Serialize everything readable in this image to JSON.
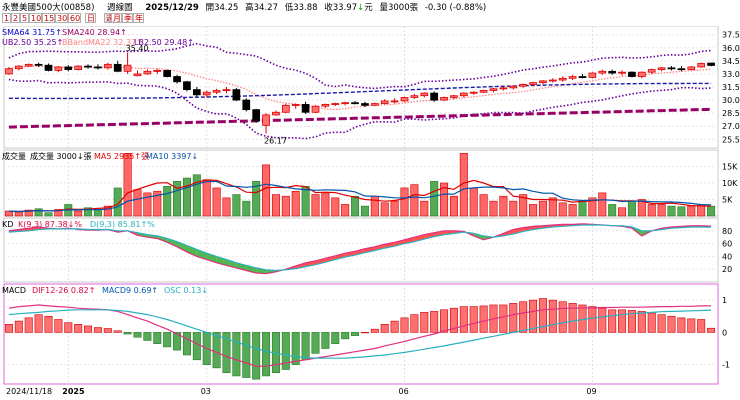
{
  "header": {
    "stock_name": "永豐美國500大(00858)",
    "period_label": "週線圖",
    "date": "2025/12/29",
    "open_label": "開",
    "open": "34.25",
    "high_label": "高",
    "high": "34.27",
    "low_label": "低",
    "low": "33.88",
    "close_label": "收",
    "close": "33.97",
    "unit": "元",
    "volume_label": "量",
    "volume": "3000",
    "volume_unit": "張",
    "change": "-0.30",
    "change_pct": "(-0.88%)",
    "colors": {
      "up": "#e00000",
      "down": "#009900"
    }
  },
  "toolbar": {
    "buttons": [
      "1",
      "2",
      "5",
      "10",
      "15",
      "30",
      "60",
      "日",
      "週",
      "月",
      "季",
      "年"
    ],
    "selected": "週"
  },
  "chart_data": [
    {
      "type": "candlestick",
      "id": "price",
      "ylim": [
        24.5,
        38.5
      ],
      "yticks": [
        "37.50",
        "36.00",
        "34.50",
        "33.00",
        "31.50",
        "30.00",
        "28.50",
        "27.00",
        "25.50"
      ],
      "ytick_values": [
        37.5,
        36,
        34.5,
        33,
        31.5,
        30,
        28.5,
        27,
        25.5
      ],
      "legend": [
        {
          "name": "SMA64",
          "value": "31.75",
          "arrow": "↑",
          "color": "#0000cc"
        },
        {
          "name": "SMA240",
          "value": "28.94",
          "arrow": "↑",
          "color": "#990066"
        },
        {
          "name": "UB2.50",
          "value": "35.25",
          "arrow": "↑",
          "color": "#660099"
        },
        {
          "name": "BBandMA22",
          "value": "32.37",
          "arrow": "↑",
          "color": "#ff8080"
        },
        {
          "name": "LB2.50",
          "value": "29.48",
          "arrow": "↑",
          "color": "#660099"
        }
      ],
      "annotations": [
        {
          "text": "35.40",
          "index": 12
        },
        {
          "text": "26.17",
          "index": 26
        }
      ],
      "candles": [
        [
          33.0,
          33.8,
          32.9,
          33.6
        ],
        [
          33.6,
          34.0,
          33.4,
          33.9
        ],
        [
          33.9,
          34.2,
          33.8,
          34.1
        ],
        [
          34.1,
          34.3,
          33.8,
          34.0
        ],
        [
          34.0,
          34.2,
          33.3,
          33.4
        ],
        [
          33.4,
          33.9,
          33.2,
          33.8
        ],
        [
          33.8,
          34.0,
          33.3,
          33.5
        ],
        [
          33.5,
          34.0,
          33.4,
          33.9
        ],
        [
          33.9,
          34.1,
          33.6,
          33.8
        ],
        [
          33.8,
          34.1,
          33.5,
          33.7
        ],
        [
          33.7,
          34.3,
          33.5,
          34.1
        ],
        [
          34.1,
          34.5,
          33.2,
          33.3
        ],
        [
          33.3,
          35.4,
          33.0,
          34.0
        ],
        [
          32.8,
          33.4,
          32.7,
          33.0
        ],
        [
          33.0,
          33.5,
          32.9,
          33.3
        ],
        [
          33.3,
          33.6,
          33.0,
          33.4
        ],
        [
          33.4,
          33.5,
          32.6,
          32.7
        ],
        [
          32.7,
          32.9,
          31.9,
          32.1
        ],
        [
          32.1,
          32.2,
          31.0,
          31.2
        ],
        [
          31.2,
          31.5,
          30.4,
          30.6
        ],
        [
          30.6,
          31.1,
          30.3,
          30.9
        ],
        [
          30.9,
          31.3,
          30.7,
          31.1
        ],
        [
          31.1,
          31.5,
          30.8,
          31.2
        ],
        [
          31.2,
          31.4,
          29.9,
          30.0
        ],
        [
          30.0,
          30.2,
          28.7,
          28.9
        ],
        [
          28.9,
          29.0,
          27.4,
          27.6
        ],
        [
          27.1,
          28.5,
          26.17,
          28.3
        ],
        [
          28.3,
          28.8,
          28.2,
          28.6
        ],
        [
          28.6,
          29.6,
          28.5,
          29.4
        ],
        [
          29.4,
          29.6,
          29.0,
          29.5
        ],
        [
          29.5,
          29.8,
          28.4,
          28.6
        ],
        [
          28.6,
          29.4,
          28.5,
          29.3
        ],
        [
          29.3,
          29.6,
          29.1,
          29.5
        ],
        [
          29.5,
          29.7,
          29.3,
          29.6
        ],
        [
          29.6,
          29.8,
          29.4,
          29.7
        ],
        [
          29.7,
          29.9,
          29.5,
          29.6
        ],
        [
          29.6,
          29.8,
          29.2,
          29.4
        ],
        [
          29.4,
          29.7,
          29.3,
          29.6
        ],
        [
          29.6,
          30.1,
          29.5,
          29.9
        ],
        [
          29.9,
          30.2,
          29.6,
          29.9
        ],
        [
          29.9,
          30.4,
          29.8,
          30.3
        ],
        [
          30.3,
          30.7,
          30.1,
          30.5
        ],
        [
          30.5,
          30.9,
          30.3,
          30.8
        ],
        [
          30.8,
          31.0,
          29.8,
          30.0
        ],
        [
          30.0,
          30.4,
          29.9,
          30.3
        ],
        [
          30.3,
          30.6,
          30.1,
          30.5
        ],
        [
          30.5,
          30.9,
          30.3,
          30.8
        ],
        [
          30.8,
          31.0,
          30.6,
          30.9
        ],
        [
          30.9,
          31.2,
          30.8,
          31.1
        ],
        [
          31.1,
          31.4,
          30.9,
          31.3
        ],
        [
          31.3,
          31.5,
          31.1,
          31.4
        ],
        [
          31.4,
          31.7,
          31.2,
          31.6
        ],
        [
          31.6,
          31.9,
          31.4,
          31.8
        ],
        [
          31.8,
          32.1,
          31.6,
          32.0
        ],
        [
          32.0,
          32.3,
          31.8,
          32.2
        ],
        [
          32.2,
          32.5,
          32.0,
          32.3
        ],
        [
          32.3,
          32.7,
          32.1,
          32.5
        ],
        [
          32.5,
          32.9,
          32.3,
          32.7
        ],
        [
          32.7,
          33.0,
          32.5,
          32.6
        ],
        [
          32.6,
          33.2,
          32.5,
          33.1
        ],
        [
          33.1,
          33.5,
          32.9,
          33.3
        ],
        [
          33.3,
          33.5,
          32.9,
          33.1
        ],
        [
          33.1,
          33.4,
          32.8,
          33.2
        ],
        [
          33.2,
          33.3,
          32.6,
          32.7
        ],
        [
          32.7,
          33.3,
          32.5,
          33.2
        ],
        [
          33.2,
          33.6,
          33.0,
          33.5
        ],
        [
          33.5,
          33.8,
          33.3,
          33.7
        ],
        [
          33.7,
          33.9,
          33.4,
          33.6
        ],
        [
          33.6,
          33.9,
          33.3,
          33.5
        ],
        [
          33.5,
          33.9,
          33.4,
          33.8
        ],
        [
          33.8,
          34.3,
          33.7,
          34.2
        ],
        [
          34.25,
          34.27,
          33.88,
          33.97
        ]
      ]
    },
    {
      "type": "bar",
      "id": "volume",
      "ylim": [
        0,
        20000
      ],
      "yticks": [
        "15K",
        "10K",
        "5K"
      ],
      "ytick_values": [
        15000,
        10000,
        5000
      ],
      "legend": [
        {
          "name": "成交量",
          "value": "",
          "arrow": "",
          "color": "#000000"
        },
        {
          "name": "成交量",
          "value": "3000",
          "arrow": "↓",
          "unit": "張",
          "color": "#000000"
        },
        {
          "name": "MA5",
          "value": "2935",
          "arrow": "↑",
          "unit": "張",
          "color": "#e00000"
        },
        {
          "name": "MA10",
          "value": "3397",
          "arrow": "↓",
          "unit": "",
          "color": "#0055aa"
        }
      ],
      "values": [
        1500,
        1200,
        1800,
        2200,
        1000,
        2000,
        3500,
        1500,
        2500,
        2000,
        3000,
        8500,
        19000,
        8000,
        7000,
        7500,
        9000,
        10500,
        11500,
        12500,
        11000,
        8500,
        5500,
        6500,
        4500,
        10500,
        15500,
        6500,
        6000,
        7500,
        9000,
        6500,
        7000,
        5500,
        3500,
        6000,
        3000,
        6000,
        4000,
        4500,
        8500,
        9500,
        4500,
        10500,
        10000,
        6000,
        19000,
        8500,
        6500,
        4500,
        6000,
        4500,
        6500,
        3500,
        4500,
        5500,
        4000,
        3500,
        4500,
        5500,
        7000,
        3500,
        2500,
        4500,
        5000,
        3500,
        3500,
        3000,
        2800,
        3000,
        3200,
        3000
      ]
    },
    {
      "type": "line",
      "id": "kd",
      "ylim": [
        0,
        100
      ],
      "yticks": [
        "80",
        "60",
        "40",
        "20"
      ],
      "ytick_values": [
        80,
        60,
        40,
        20
      ],
      "legend": [
        {
          "name": "KD",
          "value": "",
          "arrow": "",
          "color": "#000000"
        },
        {
          "name": "K(9,3)",
          "value": "87.38",
          "arrow": "↓",
          "unit": "%",
          "color": "#e00040"
        },
        {
          "name": "D(9,3)",
          "value": "85.81",
          "arrow": "↑",
          "unit": "%",
          "color": "#2ab0c0"
        }
      ],
      "series": [
        {
          "name": "K(9,3)",
          "values": [
            80,
            82,
            84,
            86,
            84,
            83,
            84,
            82,
            81,
            81,
            82,
            78,
            80,
            73,
            70,
            68,
            62,
            55,
            47,
            40,
            35,
            30,
            26,
            22,
            18,
            14,
            13,
            16,
            20,
            25,
            30,
            33,
            37,
            41,
            45,
            48,
            52,
            55,
            59,
            62,
            66,
            70,
            74,
            77,
            80,
            80,
            79,
            72,
            66,
            70,
            76,
            82,
            85,
            87,
            88,
            89,
            90,
            90,
            91,
            90,
            89,
            88,
            87,
            84,
            72,
            80,
            84,
            86,
            87,
            88,
            88,
            87.38
          ]
        },
        {
          "name": "D(9,3)",
          "values": [
            78,
            79,
            80,
            82,
            83,
            83,
            83,
            83,
            82,
            82,
            82,
            80,
            80,
            77,
            74,
            72,
            68,
            63,
            57,
            51,
            45,
            40,
            35,
            30,
            26,
            22,
            19,
            18,
            19,
            21,
            24,
            27,
            31,
            35,
            39,
            42,
            46,
            49,
            53,
            56,
            60,
            63,
            67,
            71,
            74,
            76,
            78,
            76,
            72,
            70,
            72,
            75,
            79,
            82,
            84,
            86,
            87,
            88,
            89,
            89,
            89,
            88,
            88,
            86,
            80,
            80,
            82,
            84,
            85,
            86,
            86,
            85.81
          ]
        }
      ]
    },
    {
      "type": "bar",
      "id": "macd",
      "ylim": [
        -1.6,
        1.5
      ],
      "yticks": [
        "1",
        "0",
        "-1"
      ],
      "ytick_values": [
        1,
        0,
        -1
      ],
      "legend": [
        {
          "name": "MACD",
          "value": "",
          "arrow": "",
          "color": "#000000"
        },
        {
          "name": "DIF12-26",
          "value": "0.82",
          "arrow": "↑",
          "color": "#e00040"
        },
        {
          "name": "MACD9",
          "value": "0.69",
          "arrow": "↑",
          "color": "#0055aa"
        },
        {
          "name": "OSC",
          "value": "0.13",
          "arrow": "↓",
          "color": "#2ab0c0"
        }
      ],
      "osc": [
        0.25,
        0.35,
        0.45,
        0.55,
        0.5,
        0.4,
        0.3,
        0.25,
        0.2,
        0.15,
        0.12,
        0.05,
        -0.05,
        -0.15,
        -0.25,
        -0.35,
        -0.45,
        -0.55,
        -0.7,
        -0.85,
        -1.0,
        -1.1,
        -1.25,
        -1.35,
        -1.4,
        -1.45,
        -1.35,
        -1.25,
        -1.15,
        -1.0,
        -0.85,
        -0.65,
        -0.5,
        -0.35,
        -0.2,
        -0.1,
        0.0,
        0.1,
        0.25,
        0.35,
        0.45,
        0.55,
        0.62,
        0.65,
        0.7,
        0.75,
        0.8,
        0.8,
        0.82,
        0.85,
        0.85,
        0.9,
        0.95,
        1.0,
        1.05,
        1.0,
        0.95,
        0.9,
        0.85,
        0.8,
        0.75,
        0.7,
        0.7,
        0.68,
        0.65,
        0.6,
        0.55,
        0.5,
        0.45,
        0.42,
        0.4,
        0.13
      ],
      "series": [
        {
          "name": "DIF12-26",
          "values": [
            0.75,
            0.8,
            0.82,
            0.85,
            0.82,
            0.8,
            0.78,
            0.75,
            0.73,
            0.72,
            0.7,
            0.65,
            0.55,
            0.45,
            0.35,
            0.22,
            0.1,
            -0.05,
            -0.2,
            -0.35,
            -0.5,
            -0.62,
            -0.75,
            -0.85,
            -0.95,
            -1.05,
            -1.05,
            -1.0,
            -0.95,
            -0.9,
            -0.85,
            -0.8,
            -0.75,
            -0.7,
            -0.65,
            -0.6,
            -0.55,
            -0.5,
            -0.42,
            -0.35,
            -0.28,
            -0.2,
            -0.12,
            -0.05,
            0.05,
            0.12,
            0.2,
            0.28,
            0.35,
            0.42,
            0.48,
            0.55,
            0.6,
            0.65,
            0.7,
            0.72,
            0.74,
            0.75,
            0.76,
            0.76,
            0.77,
            0.77,
            0.78,
            0.78,
            0.78,
            0.79,
            0.8,
            0.8,
            0.81,
            0.81,
            0.82,
            0.82
          ]
        },
        {
          "name": "MACD9",
          "values": [
            0.55,
            0.58,
            0.6,
            0.62,
            0.65,
            0.67,
            0.69,
            0.7,
            0.7,
            0.7,
            0.7,
            0.68,
            0.65,
            0.6,
            0.55,
            0.48,
            0.4,
            0.3,
            0.2,
            0.1,
            0.0,
            -0.1,
            -0.2,
            -0.3,
            -0.4,
            -0.5,
            -0.58,
            -0.65,
            -0.7,
            -0.75,
            -0.78,
            -0.8,
            -0.8,
            -0.8,
            -0.8,
            -0.78,
            -0.76,
            -0.73,
            -0.7,
            -0.66,
            -0.62,
            -0.57,
            -0.52,
            -0.47,
            -0.42,
            -0.36,
            -0.3,
            -0.24,
            -0.18,
            -0.12,
            -0.06,
            0.0,
            0.06,
            0.12,
            0.18,
            0.24,
            0.3,
            0.35,
            0.4,
            0.44,
            0.48,
            0.52,
            0.55,
            0.58,
            0.6,
            0.62,
            0.64,
            0.65,
            0.66,
            0.67,
            0.68,
            0.69
          ]
        }
      ]
    }
  ],
  "x_axis": {
    "labels": [
      {
        "text": "2024/11/18",
        "index": 0
      },
      {
        "text": "2025",
        "index": 6
      },
      {
        "text": "03",
        "index": 20
      },
      {
        "text": "06",
        "index": 40
      },
      {
        "text": "09",
        "index": 59
      }
    ]
  }
}
